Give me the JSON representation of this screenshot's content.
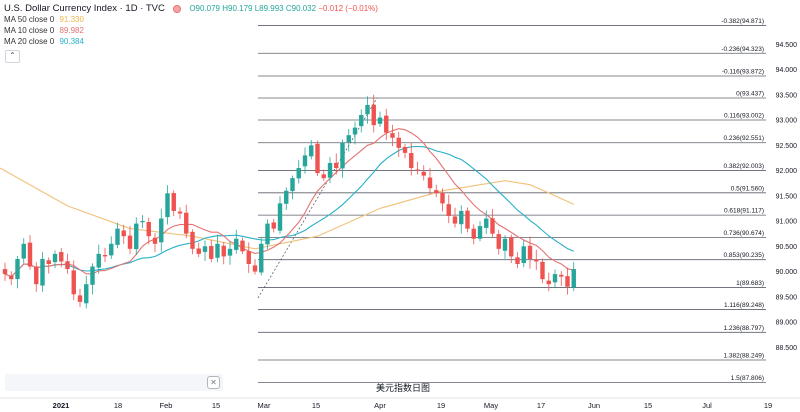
{
  "legend": {
    "title": "U.S. Dollar Currency Index · 1D · TVC",
    "ohlc": "O90.079 H90.179 L89.993 C90.032",
    "change": "−0.012 (−0.01%)",
    "ma50_label": "MA 50 close 0",
    "ma50_value": "91.330",
    "ma10_label": "MA 10 close 0",
    "ma10_value": "89.982",
    "ma20_label": "MA 20 close 0",
    "ma20_value": "90.384"
  },
  "caption": "美元指数日图",
  "icons": {
    "collapse": "chevron-up-icon",
    "close": "close-icon"
  },
  "colors": {
    "up": "#26a69a",
    "down": "#ef5350",
    "ma10": "#e57373",
    "ma20": "#26b0c9",
    "ma50": "#f0c27a",
    "fib": "#5d606b",
    "axis_text": "#131722",
    "ma50_text": "#f0b44c",
    "ma10_text": "#e57373",
    "ma20_text": "#26b0c9"
  },
  "chart_data": {
    "type": "candlestick",
    "x_tick_labels": [
      "2021",
      "18",
      "Feb",
      "15",
      "Mar",
      "15",
      "Apr",
      "19",
      "May",
      "17",
      "Jun",
      "15",
      "Jul",
      "19"
    ],
    "y_tick_labels": [
      "94.500",
      "94.000",
      "93.500",
      "93.000",
      "92.500",
      "92.000",
      "91.500",
      "91.000",
      "90.500",
      "90.000",
      "89.500",
      "89.000",
      "88.500"
    ],
    "ylim": [
      88.25,
      94.9
    ],
    "fib_levels": [
      {
        "label": "-0.382(94.871)",
        "value": 94.871
      },
      {
        "label": "-0.236(94.323)",
        "value": 94.323
      },
      {
        "label": "-0.116(93.872)",
        "value": 93.872
      },
      {
        "label": "0(93.437)",
        "value": 93.437
      },
      {
        "label": "0.116(93.002)",
        "value": 93.002
      },
      {
        "label": "0.236(92.551)",
        "value": 92.551
      },
      {
        "label": "0.382(92.003)",
        "value": 92.003
      },
      {
        "label": "0.5(91.560)",
        "value": 91.56
      },
      {
        "label": "0.618(91.117)",
        "value": 91.117
      },
      {
        "label": "0.736(90.674)",
        "value": 90.674
      },
      {
        "label": "0.853(90.235)",
        "value": 90.235
      },
      {
        "label": "1(89.683)",
        "value": 89.683
      },
      {
        "label": "1.116(89.248)",
        "value": 89.248
      },
      {
        "label": "1.236(88.797)",
        "value": 88.797
      },
      {
        "label": "1.382(88.249)",
        "value": 88.249
      },
      {
        "label": "1.5(87.806)",
        "value": 87.806
      }
    ],
    "closes": [
      89.95,
      89.85,
      90.25,
      90.55,
      90.1,
      89.75,
      90.25,
      90.15,
      90.35,
      90.2,
      90.05,
      89.55,
      89.4,
      89.75,
      90.1,
      90.35,
      90.3,
      90.55,
      90.85,
      90.7,
      90.45,
      90.95,
      91.0,
      90.7,
      90.55,
      91.05,
      91.55,
      91.2,
      91.15,
      90.75,
      90.45,
      90.35,
      90.5,
      90.25,
      90.55,
      90.3,
      90.45,
      90.65,
      90.4,
      90.15,
      90.0,
      90.55,
      90.95,
      90.85,
      91.35,
      91.6,
      91.85,
      92.05,
      92.3,
      92.5,
      91.95,
      91.85,
      92.15,
      92.05,
      92.55,
      92.7,
      92.85,
      93.1,
      93.3,
      92.9,
      93.05,
      92.75,
      92.65,
      92.45,
      92.35,
      92.05,
      92.0,
      91.9,
      91.65,
      91.55,
      91.35,
      91.1,
      90.95,
      91.2,
      90.85,
      90.65,
      90.9,
      91.05,
      90.75,
      90.45,
      90.65,
      90.3,
      90.15,
      90.5,
      90.25,
      90.2,
      89.85,
      89.75,
      89.95,
      89.9,
      89.7,
      90.05
    ],
    "ma50_x_anchors": [
      0,
      10,
      20,
      30,
      40,
      50,
      60,
      70,
      80,
      84,
      88,
      91
    ],
    "ma50_values": [
      92.05,
      91.3,
      90.85,
      90.7,
      90.45,
      90.7,
      91.25,
      91.6,
      91.8,
      91.72,
      91.5,
      91.33
    ]
  }
}
